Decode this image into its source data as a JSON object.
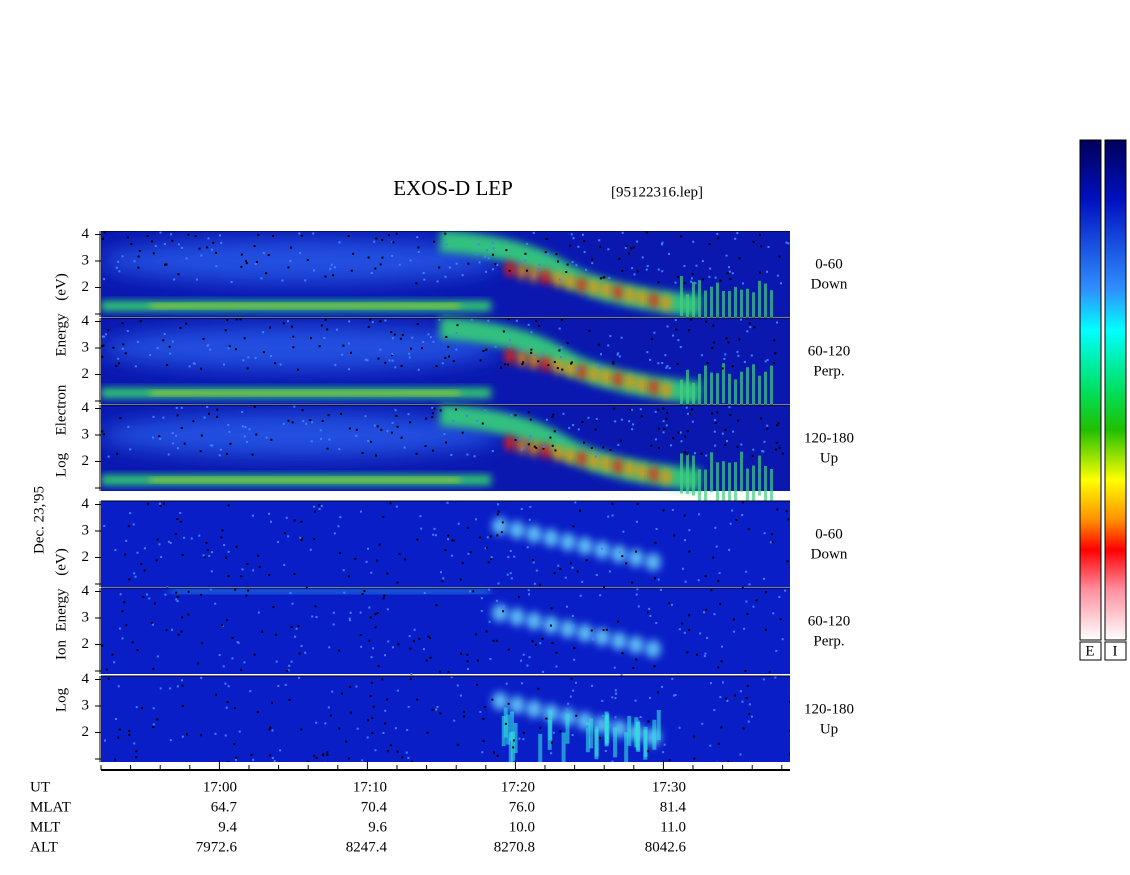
{
  "header": {
    "title": "EXOS-D LEP",
    "file": "[95122316.lep]"
  },
  "date": "Dec. 23,'95",
  "electron_axis_label": [
    "Log",
    "Electron",
    "Energy",
    "(eV)"
  ],
  "ion_axis_label": [
    "Log",
    "Ion",
    "Energy",
    "(eV)"
  ],
  "panels": [
    {
      "species": "electron",
      "side_label": [
        "0-60",
        "Down"
      ],
      "yticks": [
        2,
        3,
        4
      ]
    },
    {
      "species": "electron",
      "side_label": [
        "60-120",
        "Perp."
      ],
      "yticks": [
        2,
        3,
        4
      ]
    },
    {
      "species": "electron",
      "side_label": [
        "120-180",
        "Up"
      ],
      "yticks": [
        2,
        3,
        4
      ]
    },
    {
      "species": "ion",
      "side_label": [
        "0-60",
        "Down"
      ],
      "yticks": [
        2,
        3,
        4
      ]
    },
    {
      "species": "ion",
      "side_label": [
        "60-120",
        "Perp."
      ],
      "yticks": [
        2,
        3,
        4
      ]
    },
    {
      "species": "ion",
      "side_label": [
        "120-180",
        "Up"
      ],
      "yticks": [
        2,
        3,
        4
      ]
    }
  ],
  "table": {
    "row_labels": [
      "UT",
      "MLAT",
      "MLT",
      "ALT"
    ],
    "columns": [
      [
        "17:00",
        "64.7",
        "9.4",
        "7972.6"
      ],
      [
        "17:10",
        "70.4",
        "9.6",
        "8247.4"
      ],
      [
        "17:20",
        "76.0",
        "10.0",
        "8270.8"
      ],
      [
        "17:30",
        "81.4",
        "11.0",
        "8042.6"
      ]
    ]
  },
  "colorbar": {
    "labels": [
      "E",
      "I"
    ]
  }
}
